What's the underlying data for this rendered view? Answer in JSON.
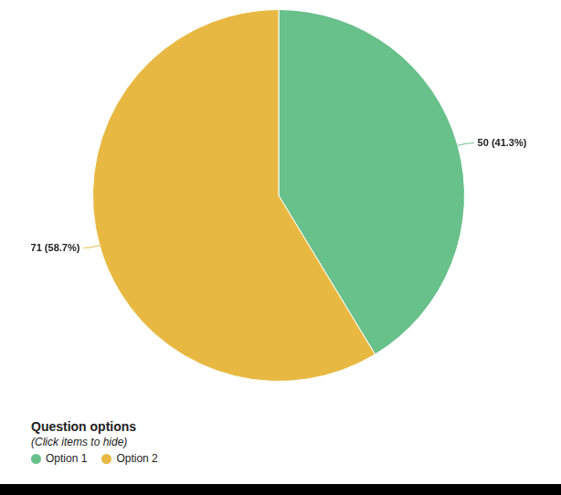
{
  "chart_data": {
    "type": "pie",
    "categories": [
      "Option 1",
      "Option 2"
    ],
    "values": [
      50,
      71
    ],
    "value_labels": [
      "50 (41.3%)",
      "71 (58.7%)"
    ],
    "colors": [
      "#68c08a",
      "#e8b942"
    ],
    "data_labels": true,
    "legend": "bottom-left",
    "legend_title": "Question options",
    "legend_subtitle": "(Click items to hide)"
  }
}
